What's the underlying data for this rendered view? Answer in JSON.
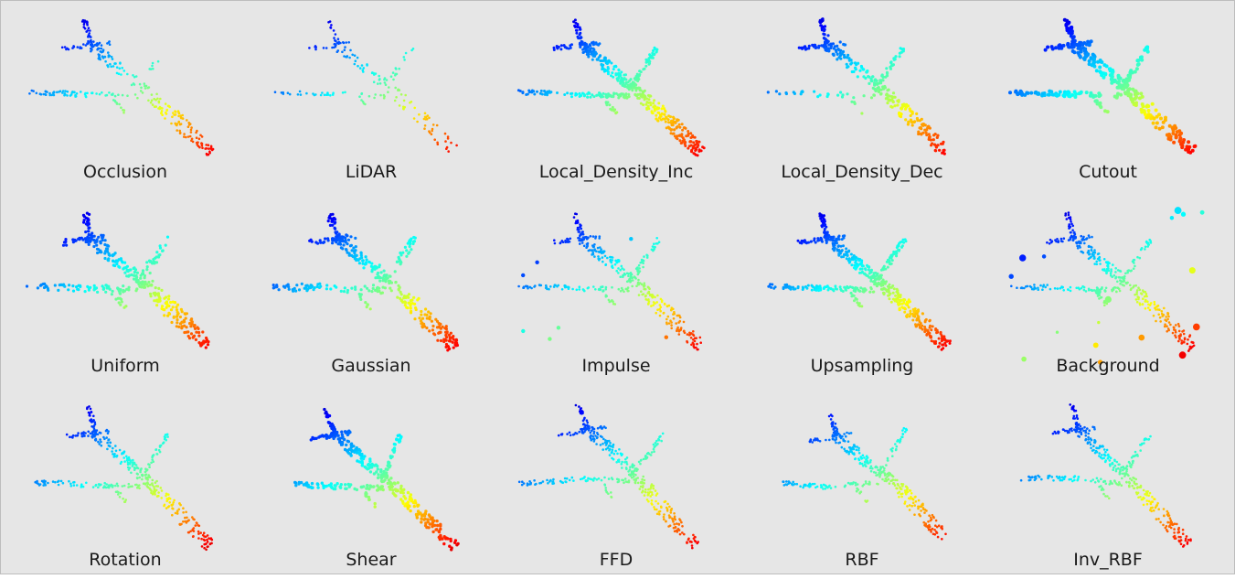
{
  "figure": {
    "panels": [
      {
        "label": "Occlusion",
        "variant": "occlusion"
      },
      {
        "label": "LiDAR",
        "variant": "lidar"
      },
      {
        "label": "Local_Density_Inc",
        "variant": "density_inc"
      },
      {
        "label": "Local_Density_Dec",
        "variant": "density_dec"
      },
      {
        "label": "Cutout",
        "variant": "cutout"
      },
      {
        "label": "Uniform",
        "variant": "uniform"
      },
      {
        "label": "Gaussian",
        "variant": "gaussian"
      },
      {
        "label": "Impulse",
        "variant": "impulse"
      },
      {
        "label": "Upsampling",
        "variant": "upsampling"
      },
      {
        "label": "Background",
        "variant": "background"
      },
      {
        "label": "Rotation",
        "variant": "rotation"
      },
      {
        "label": "Shear",
        "variant": "shear"
      },
      {
        "label": "FFD",
        "variant": "ffd"
      },
      {
        "label": "RBF",
        "variant": "rbf"
      },
      {
        "label": "Inv_RBF",
        "variant": "inv_rbf"
      }
    ],
    "colormap": [
      "#00008f",
      "#0000ff",
      "#0080ff",
      "#00ffff",
      "#80ff80",
      "#ffff00",
      "#ff8000",
      "#ff0000",
      "#800000"
    ]
  }
}
